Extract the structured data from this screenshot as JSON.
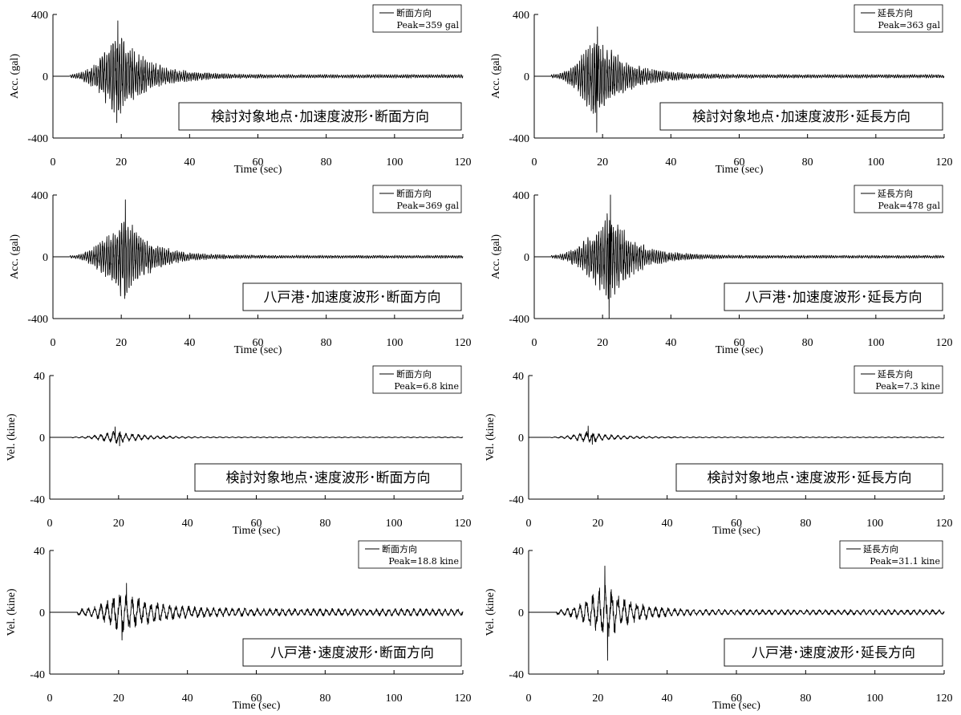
{
  "chart_data": [
    {
      "type": "line",
      "panel": "acc-site-transverse",
      "xlabel": "Time (sec)",
      "ylabel": "Acc. (gal)",
      "xlim": [
        0,
        120
      ],
      "ylim": [
        -400,
        400
      ],
      "xticks": [
        "0",
        "20",
        "40",
        "60",
        "80",
        "100",
        "120"
      ],
      "yticks": [
        "400",
        "0",
        "-400"
      ],
      "legend_label": "断面方向",
      "peak_label": "Peak=359 gal",
      "caption": "検討対象地点･加速度波形･断面方向",
      "wave": {
        "t0": 5,
        "tpeak": 19,
        "env_up": 310,
        "env_down": 320,
        "floor": 12,
        "osc": 1.6,
        "min": -300,
        "max": 359,
        "t_max": 19.0,
        "t_min": 18.7,
        "decay": 8
      }
    },
    {
      "type": "line",
      "panel": "acc-site-longitudinal",
      "xlabel": "Time (sec)",
      "ylabel": "Acc. (gal)",
      "xlim": [
        0,
        120
      ],
      "ylim": [
        -400,
        400
      ],
      "xticks": [
        "0",
        "20",
        "40",
        "60",
        "80",
        "100",
        "120"
      ],
      "yticks": [
        "400",
        "0",
        "-400"
      ],
      "legend_label": "延長方向",
      "peak_label": "Peak=363 gal",
      "caption": "検討対象地点･加速度波形･延長方向",
      "wave": {
        "t0": 5,
        "tpeak": 18,
        "env_up": 300,
        "env_down": 320,
        "floor": 12,
        "osc": 1.6,
        "min": -363,
        "max": 320,
        "t_max": 18.5,
        "t_min": 18.3,
        "decay": 8
      }
    },
    {
      "type": "line",
      "panel": "acc-hachinohe-transverse",
      "xlabel": "Time (sec)",
      "ylabel": "Acc. (gal)",
      "xlim": [
        0,
        120
      ],
      "ylim": [
        -400,
        400
      ],
      "xticks": [
        "0",
        "20",
        "40",
        "60",
        "80",
        "100",
        "120"
      ],
      "yticks": [
        "400",
        "0",
        "-400"
      ],
      "legend_label": "断面方向",
      "peak_label": "Peak=369 gal",
      "caption": "八戸港･加速度波形･断面方向",
      "wave": {
        "t0": 5,
        "tpeak": 21,
        "env_up": 300,
        "env_down": 260,
        "floor": 10,
        "osc": 1.6,
        "min": -270,
        "max": 369,
        "t_max": 21.2,
        "t_min": 21.0,
        "decay": 7
      }
    },
    {
      "type": "line",
      "panel": "acc-hachinohe-longitudinal",
      "xlabel": "Time (sec)",
      "ylabel": "Acc. (gal)",
      "xlim": [
        0,
        120
      ],
      "ylim": [
        -400,
        400
      ],
      "xticks": [
        "0",
        "20",
        "40",
        "60",
        "80",
        "100",
        "120"
      ],
      "yticks": [
        "400",
        "0",
        "-400"
      ],
      "legend_label": "延長方向",
      "peak_label": "Peak=478 gal",
      "caption": "八戸港･加速度波形･延長方向",
      "wave": {
        "t0": 5,
        "tpeak": 22,
        "env_up": 320,
        "env_down": 360,
        "floor": 10,
        "osc": 1.6,
        "min": -478,
        "max": 400,
        "t_max": 22.3,
        "t_min": 21.9,
        "decay": 7
      }
    },
    {
      "type": "line",
      "panel": "vel-site-transverse",
      "xlabel": "Time (sec)",
      "ylabel": "Vel. (kine)",
      "xlim": [
        0,
        120
      ],
      "ylim": [
        -40,
        40
      ],
      "xticks": [
        "0",
        "20",
        "40",
        "60",
        "80",
        "100",
        "120"
      ],
      "yticks": [
        "40",
        "0",
        "-40"
      ],
      "legend_label": "断面方向",
      "peak_label": "Peak=6.8 kine",
      "caption": "検討対象地点･速度波形･断面方向",
      "wave": {
        "t0": 6,
        "tpeak": 19,
        "env_up": 4.5,
        "env_down": 4.5,
        "floor": 0.3,
        "osc": 0.55,
        "min": -5.5,
        "max": 6.8,
        "t_max": 19.0,
        "t_min": 20.3,
        "decay": 8
      }
    },
    {
      "type": "line",
      "panel": "vel-site-longitudinal",
      "xlabel": "Time (sec)",
      "ylabel": "Vel. (kine)",
      "xlim": [
        0,
        120
      ],
      "ylim": [
        -40,
        40
      ],
      "xticks": [
        "0",
        "20",
        "40",
        "60",
        "80",
        "100",
        "120"
      ],
      "yticks": [
        "40",
        "0",
        "-40"
      ],
      "legend_label": "延長方向",
      "peak_label": "Peak=7.3 kine",
      "caption": "検討対象地点･速度波形･延長方向",
      "wave": {
        "t0": 6,
        "tpeak": 17,
        "env_up": 4,
        "env_down": 4,
        "floor": 0.3,
        "osc": 0.55,
        "min": -4.5,
        "max": 7.3,
        "t_max": 17.2,
        "t_min": 18.4,
        "decay": 8
      }
    },
    {
      "type": "line",
      "panel": "vel-hachinohe-transverse",
      "xlabel": "Time (sec)",
      "ylabel": "Vel. (kine)",
      "xlim": [
        0,
        120
      ],
      "ylim": [
        -40,
        40
      ],
      "xticks": [
        "0",
        "20",
        "40",
        "60",
        "80",
        "100",
        "120"
      ],
      "yticks": [
        "40",
        "0",
        "-40"
      ],
      "legend_label": "断面方向",
      "peak_label": "Peak=18.8 kine",
      "caption": "八戸港･速度波形･断面方向",
      "wave": {
        "t0": 8,
        "tpeak": 21,
        "env_up": 14,
        "env_down": 15,
        "floor": 2.5,
        "osc": 0.55,
        "min": -18,
        "max": 18.8,
        "t_max": 22.3,
        "t_min": 21.0,
        "decay": 10
      }
    },
    {
      "type": "line",
      "panel": "vel-hachinohe-longitudinal",
      "xlabel": "Time (sec)",
      "ylabel": "Vel. (kine)",
      "xlim": [
        0,
        120
      ],
      "ylim": [
        -40,
        40
      ],
      "xticks": [
        "0",
        "20",
        "40",
        "60",
        "80",
        "100",
        "120"
      ],
      "yticks": [
        "40",
        "0",
        "-40"
      ],
      "legend_label": "延長方向",
      "peak_label": "Peak=31.1 kine",
      "caption": "八戸港･速度波形･延長方向",
      "wave": {
        "t0": 8,
        "tpeak": 22,
        "env_up": 20,
        "env_down": 22,
        "floor": 1.8,
        "osc": 0.55,
        "min": -31.1,
        "max": 30,
        "t_max": 22.0,
        "t_min": 22.8,
        "decay": 7
      }
    }
  ]
}
